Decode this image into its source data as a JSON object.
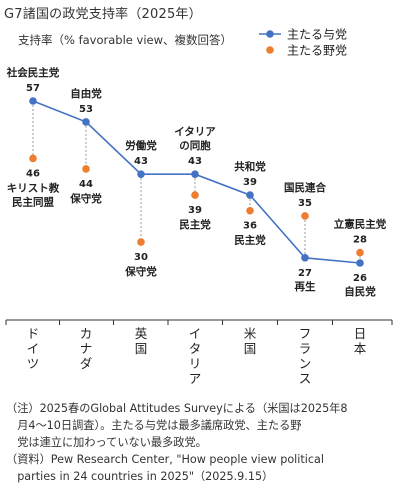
{
  "title": "G7諸国の政党支持率（2025年）",
  "chart_data": {
    "type": "line",
    "ylabel": "支持率（% favorable view、複数回答）",
    "categories": [
      "ドイツ",
      "カナダ",
      "英国",
      "イタリア",
      "米国",
      "フランス",
      "日本"
    ],
    "legend": {
      "position": "top-right"
    },
    "series": [
      {
        "name": "主たる与党",
        "color": "#4472C4",
        "values": [
          57,
          53,
          43,
          43,
          39,
          27,
          26
        ],
        "party_labels": [
          "社会民主党",
          "自由党",
          "労働党",
          "イタリアの同胞",
          "共和党",
          "再生",
          "自民党"
        ]
      },
      {
        "name": "主たる野党",
        "color": "#ED7D31",
        "values": [
          46,
          44,
          30,
          39,
          36,
          35,
          28
        ],
        "party_labels": [
          "キリスト教民主同盟",
          "保守党",
          "保守党",
          "民主党",
          "民主党",
          "国民連合",
          "立憲民主党"
        ]
      }
    ],
    "ylim": [
      0,
      70
    ],
    "grid": false
  },
  "notes": [
    "（注）2025春のGlobal Attitudes Surveyによる（米国は2025年8",
    "　月4～10日調査）。主たる与党は最多議席政党、主たる野",
    "　党は連立に加わっていない最多政党。",
    "（資料）Pew Research Center, \"How people view political",
    "　parties in 24 countries in 2025\"（2025.9.15）"
  ]
}
